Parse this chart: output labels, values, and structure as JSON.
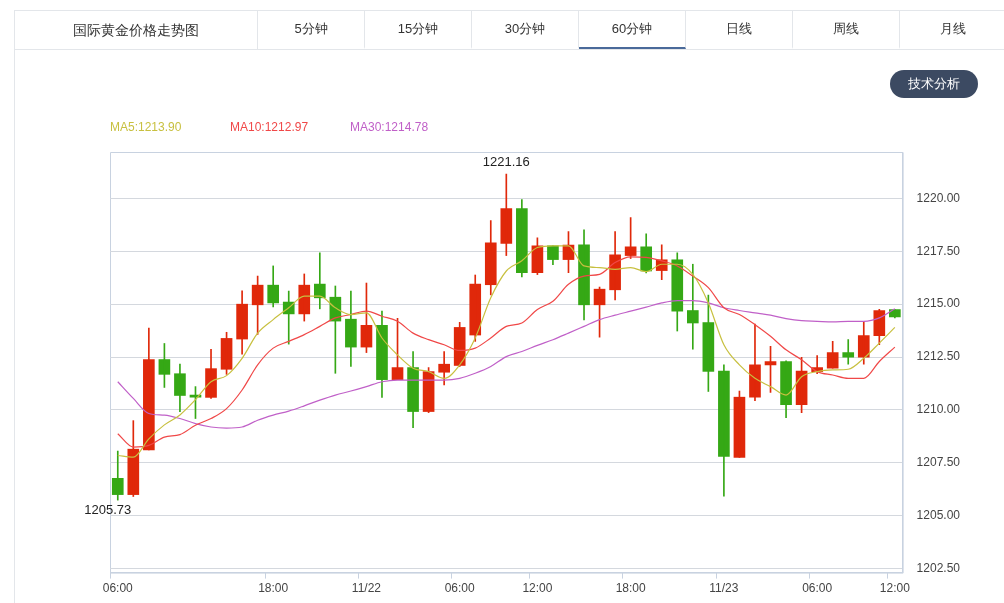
{
  "chart_data": {
    "type": "candlestick",
    "title": "国际黄金价格走势图",
    "annotations": [
      "5分钟",
      "15分钟",
      "30分钟",
      "60分钟",
      "日线",
      "周线",
      "月线",
      "技术分析",
      {
        "text": "1221.16",
        "y": 1221.16
      },
      {
        "text": "1205.73",
        "x": "06:00",
        "y": 1205.73
      }
    ],
    "categories": [
      "06:00",
      null,
      null,
      null,
      null,
      null,
      null,
      null,
      null,
      null,
      "18:00",
      null,
      null,
      null,
      null,
      null,
      "11/22",
      null,
      null,
      null,
      null,
      null,
      "06:00",
      null,
      null,
      null,
      null,
      "12:00",
      null,
      null,
      null,
      null,
      null,
      "18:00",
      null,
      null,
      null,
      null,
      null,
      "11/23",
      null,
      null,
      null,
      null,
      null,
      "06:00",
      null,
      null,
      null,
      null,
      "12:00"
    ],
    "ohlc": [
      [
        1206.76,
        1208.05,
        1205.73,
        1205.99
      ],
      [
        1205.99,
        1209.49,
        1205.9,
        1208.14
      ],
      [
        1208.11,
        1213.87,
        1208.1,
        1212.38
      ],
      [
        1212.38,
        1213.14,
        1211.06,
        1211.68
      ],
      [
        1211.71,
        1212.16,
        1209.92,
        1210.68
      ],
      [
        1210.7,
        1211.1,
        1209.59,
        1210.6
      ],
      [
        1210.59,
        1212.86,
        1210.54,
        1211.95
      ],
      [
        1211.92,
        1213.67,
        1211.68,
        1213.38
      ],
      [
        1213.35,
        1215.63,
        1212.63,
        1215.0
      ],
      [
        1214.97,
        1216.33,
        1213.57,
        1215.9
      ],
      [
        1215.9,
        1216.81,
        1214.87,
        1215.06
      ],
      [
        1215.1,
        1215.62,
        1213.11,
        1214.54
      ],
      [
        1214.54,
        1216.43,
        1214.2,
        1215.9
      ],
      [
        1215.95,
        1217.43,
        1214.78,
        1215.3
      ],
      [
        1215.33,
        1215.86,
        1211.73,
        1214.2
      ],
      [
        1214.29,
        1215.62,
        1212.05,
        1212.97
      ],
      [
        1212.97,
        1216.0,
        1212.71,
        1214.0
      ],
      [
        1214.0,
        1214.67,
        1210.59,
        1211.43
      ],
      [
        1211.43,
        1214.33,
        1211.43,
        1212.0
      ],
      [
        1212.0,
        1212.76,
        1209.16,
        1209.92
      ],
      [
        1209.92,
        1212.0,
        1209.87,
        1211.81
      ],
      [
        1211.78,
        1212.76,
        1211.18,
        1212.16
      ],
      [
        1212.1,
        1214.14,
        1212.05,
        1213.9
      ],
      [
        1213.54,
        1216.38,
        1213.24,
        1215.95
      ],
      [
        1215.92,
        1218.95,
        1215.44,
        1217.9
      ],
      [
        1217.87,
        1221.16,
        1217.3,
        1219.52
      ],
      [
        1219.52,
        1219.95,
        1216.29,
        1216.49
      ],
      [
        1216.49,
        1218.14,
        1216.4,
        1217.76
      ],
      [
        1217.76,
        1217.76,
        1216.87,
        1217.11
      ],
      [
        1217.11,
        1218.43,
        1216.49,
        1217.8
      ],
      [
        1217.81,
        1218.52,
        1214.25,
        1214.97
      ],
      [
        1214.97,
        1215.81,
        1213.44,
        1215.71
      ],
      [
        1215.68,
        1218.43,
        1215.2,
        1217.33
      ],
      [
        1217.3,
        1219.1,
        1217.16,
        1217.71
      ],
      [
        1217.71,
        1218.33,
        1216.48,
        1216.57
      ],
      [
        1216.59,
        1217.81,
        1216.16,
        1217.1
      ],
      [
        1217.1,
        1217.43,
        1213.73,
        1214.67
      ],
      [
        1214.7,
        1216.89,
        1212.87,
        1214.11
      ],
      [
        1214.13,
        1215.43,
        1210.87,
        1211.82
      ],
      [
        1211.84,
        1212.13,
        1205.92,
        1207.8
      ],
      [
        1207.75,
        1210.89,
        1207.75,
        1210.6
      ],
      [
        1210.6,
        1214.06,
        1210.44,
        1212.13
      ],
      [
        1212.13,
        1213.0,
        1210.82,
        1212.29
      ],
      [
        1212.29,
        1212.32,
        1209.63,
        1210.25
      ],
      [
        1210.25,
        1212.48,
        1209.87,
        1211.84
      ],
      [
        1211.81,
        1212.57,
        1211.71,
        1212.0
      ],
      [
        1211.97,
        1213.24,
        1211.97,
        1212.71
      ],
      [
        1212.71,
        1213.32,
        1212.16,
        1212.49
      ],
      [
        1212.49,
        1214.19,
        1212.16,
        1213.52
      ],
      [
        1213.51,
        1214.76,
        1213.08,
        1214.7
      ],
      [
        1214.75,
        1214.75,
        1214.35,
        1214.4
      ]
    ],
    "colors": [
      "#35a815",
      "#e0280a",
      "#e0280a",
      "#35a815",
      "#35a815",
      "#35a815",
      "#e0280a",
      "#e0280a",
      "#e0280a",
      "#e0280a",
      "#35a815",
      "#35a815",
      "#e0280a",
      "#35a815",
      "#35a815",
      "#35a815",
      "#e0280a",
      "#35a815",
      "#e0280a",
      "#35a815",
      "#e0280a",
      "#e0280a",
      "#e0280a",
      "#e0280a",
      "#e0280a",
      "#e0280a",
      "#35a815",
      "#e0280a",
      "#35a815",
      "#e0280a",
      "#35a815",
      "#e0280a",
      "#e0280a",
      "#e0280a",
      "#35a815",
      "#e0280a",
      "#35a815",
      "#35a815",
      "#35a815",
      "#35a815",
      "#e0280a",
      "#e0280a",
      "#e0280a",
      "#35a815",
      "#e0280a",
      "#e0280a",
      "#e0280a",
      "#35a815",
      "#e0280a",
      "#e0280a",
      "#35a815"
    ],
    "series": [
      {
        "type": "line",
        "name": "MA5:1213.90",
        "color": "#c8c040",
        "values": [
          1207.84,
          1207.76,
          1208.63,
          1209.29,
          1209.76,
          1210.48,
          1211.33,
          1211.62,
          1212.44,
          1213.63,
          1214.27,
          1214.83,
          1215.38,
          1215.38,
          1214.83,
          1214.51,
          1214.59,
          1213.4,
          1212.6,
          1211.97,
          1211.81,
          1211.49,
          1212.13,
          1213.4,
          1215.3,
          1216.57,
          1217.05,
          1217.68,
          1217.76,
          1217.76,
          1216.81,
          1216.73,
          1216.65,
          1216.73,
          1216.54,
          1216.89,
          1216.89,
          1216.41,
          1215.06,
          1213.08,
          1212.13,
          1211.49,
          1211.1,
          1210.7,
          1211.57,
          1211.81,
          1211.89,
          1211.92,
          1212.44,
          1213.16,
          1213.9
        ]
      },
      {
        "type": "line",
        "name": "MA10:1212.97",
        "color": "#f04848",
        "values": [
          1208.87,
          1208.24,
          1208.32,
          1208.71,
          1208.83,
          1209.27,
          1209.59,
          1210.06,
          1210.94,
          1212.13,
          1212.92,
          1213.24,
          1213.56,
          1213.95,
          1214.35,
          1214.51,
          1214.67,
          1214.43,
          1214.19,
          1213.63,
          1213.32,
          1213.08,
          1212.81,
          1212.92,
          1213.4,
          1213.95,
          1214.11,
          1214.75,
          1215.14,
          1215.94,
          1216.33,
          1216.41,
          1216.97,
          1217.24,
          1217.21,
          1217.05,
          1216.81,
          1216.33,
          1215.78,
          1214.83,
          1214.51,
          1214.03,
          1213.48,
          1212.84,
          1212.37,
          1211.81,
          1211.65,
          1211.49,
          1211.49,
          1212.29,
          1212.97
        ]
      },
      {
        "type": "line",
        "name": "MA30:1214.78",
        "color": "#c060c8",
        "values": [
          1211.33,
          1210.54,
          1209.83,
          1209.75,
          1209.59,
          1209.35,
          1209.19,
          1209.14,
          1209.19,
          1209.51,
          1209.75,
          1209.94,
          1210.19,
          1210.46,
          1210.7,
          1210.89,
          1211.1,
          1211.33,
          1211.41,
          1211.41,
          1211.41,
          1211.41,
          1211.49,
          1211.73,
          1212.05,
          1212.52,
          1212.76,
          1213.05,
          1213.32,
          1213.63,
          1213.95,
          1214.27,
          1214.48,
          1214.67,
          1214.86,
          1215.06,
          1215.17,
          1215.17,
          1215.06,
          1214.83,
          1214.7,
          1214.59,
          1214.48,
          1214.32,
          1214.22,
          1214.19,
          1214.16,
          1214.19,
          1214.19,
          1214.35,
          1214.78
        ]
      }
    ],
    "ylim": [
      1202.3,
      1222.2
    ],
    "yticks": [
      {
        "value": 1202.5,
        "label": "1202.50"
      },
      {
        "value": 1205,
        "label": "1205.00"
      },
      {
        "value": 1207.5,
        "label": "1207.50"
      },
      {
        "value": 1210,
        "label": "1210.00"
      },
      {
        "value": 1212.5,
        "label": "1212.50"
      },
      {
        "value": 1215,
        "label": "1215.00"
      },
      {
        "value": 1217.5,
        "label": "1217.50"
      },
      {
        "value": 1220,
        "label": "1220.00"
      }
    ],
    "grid": "y",
    "legend": "top left",
    "marker": "none",
    "line_style": "solid"
  }
}
